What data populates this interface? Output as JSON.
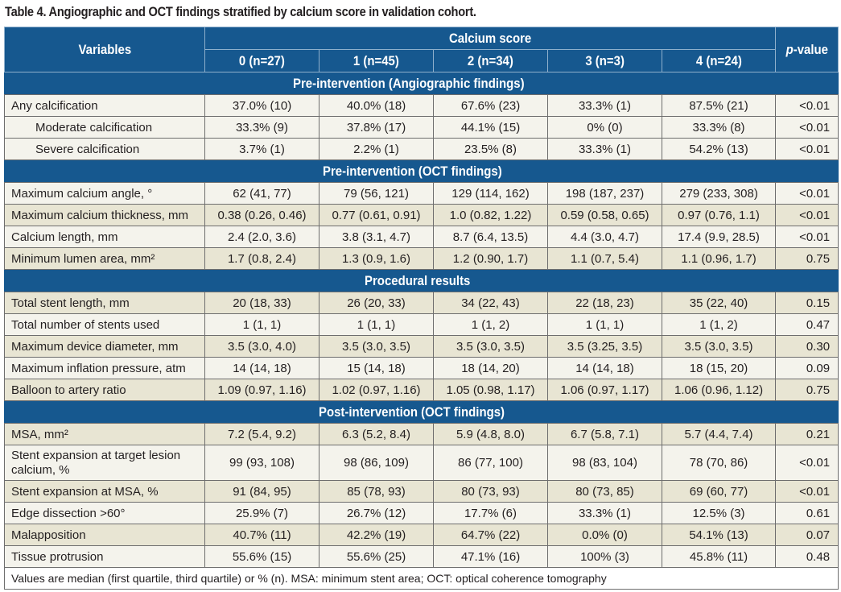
{
  "title": "Table 4. Angiographic and OCT findings stratified by calcium score in validation cohort.",
  "header": {
    "variables": "Variables",
    "group": "Calcium score",
    "pvalue_italic": "p",
    "pvalue_rest": "-value",
    "columns": [
      "0 (n=27)",
      "1 (n=45)",
      "2 (n=34)",
      "3 (n=3)",
      "4 (n=24)"
    ]
  },
  "sections": [
    {
      "title": "Pre-intervention (Angiographic findings)",
      "rows": [
        {
          "label": "Any calcification",
          "values": [
            "37.0% (10)",
            "40.0% (18)",
            "67.6% (23)",
            "33.3% (1)",
            "87.5% (21)"
          ],
          "p": "<0.01"
        },
        {
          "label": "Moderate calcification",
          "values": [
            "33.3% (9)",
            "37.8% (17)",
            "44.1% (15)",
            "0% (0)",
            "33.3% (8)"
          ],
          "p": "<0.01"
        },
        {
          "label": "Severe calcification",
          "values": [
            "3.7% (1)",
            "2.2% (1)",
            "23.5% (8)",
            "33.3% (1)",
            "54.2% (13)"
          ],
          "p": "<0.01"
        }
      ]
    },
    {
      "title": "Pre-intervention (OCT findings)",
      "rows": [
        {
          "label": "Maximum calcium angle, °",
          "values": [
            "62 (41, 77)",
            "79 (56, 121)",
            "129 (114, 162)",
            "198 (187, 237)",
            "279 (233, 308)"
          ],
          "p": "<0.01"
        },
        {
          "label": "Maximum calcium thickness, mm",
          "values": [
            "0.38 (0.26, 0.46)",
            "0.77 (0.61, 0.91)",
            "1.0 (0.82, 1.22)",
            "0.59 (0.58, 0.65)",
            "0.97 (0.76, 1.1)"
          ],
          "p": "<0.01"
        },
        {
          "label": "Calcium length, mm",
          "values": [
            "2.4 (2.0, 3.6)",
            "3.8 (3.1, 4.7)",
            "8.7 (6.4, 13.5)",
            "4.4 (3.0, 4.7)",
            "17.4 (9.9, 28.5)"
          ],
          "p": "<0.01"
        },
        {
          "label": "Minimum lumen area, mm²",
          "values": [
            "1.7 (0.8, 2.4)",
            "1.3 (0.9, 1.6)",
            "1.2 (0.90, 1.7)",
            "1.1 (0.7, 5.4)",
            "1.1 (0.96, 1.7)"
          ],
          "p": "0.75"
        }
      ]
    },
    {
      "title": "Procedural results",
      "rows": [
        {
          "label": "Total stent length, mm",
          "values": [
            "20 (18, 33)",
            "26 (20, 33)",
            "34 (22, 43)",
            "22 (18, 23)",
            "35 (22, 40)"
          ],
          "p": "0.15"
        },
        {
          "label": "Total number of stents used",
          "values": [
            "1 (1, 1)",
            "1 (1, 1)",
            "1 (1, 2)",
            "1 (1, 1)",
            "1 (1, 2)"
          ],
          "p": "0.47"
        },
        {
          "label": "Maximum device diameter, mm",
          "values": [
            "3.5 (3.0, 4.0)",
            "3.5 (3.0, 3.5)",
            "3.5 (3.0, 3.5)",
            "3.5 (3.25, 3.5)",
            "3.5 (3.0, 3.5)"
          ],
          "p": "0.30"
        },
        {
          "label": "Maximum inflation pressure, atm",
          "values": [
            "14 (14, 18)",
            "15 (14, 18)",
            "18 (14, 20)",
            "14 (14, 18)",
            "18 (15, 20)"
          ],
          "p": "0.09"
        },
        {
          "label": "Balloon to artery ratio",
          "values": [
            "1.09 (0.97, 1.16)",
            "1.02 (0.97, 1.16)",
            "1.05 (0.98, 1.17)",
            "1.06 (0.97, 1.17)",
            "1.06 (0.96, 1.12)"
          ],
          "p": "0.75"
        }
      ]
    },
    {
      "title": "Post-intervention (OCT findings)",
      "rows": [
        {
          "label": "MSA, mm²",
          "values": [
            "7.2 (5.4, 9.2)",
            "6.3 (5.2, 8.4)",
            "5.9 (4.8, 8.0)",
            "6.7 (5.8, 7.1)",
            "5.7 (4.4, 7.4)"
          ],
          "p": "0.21"
        },
        {
          "label": "Stent expansion at target lesion calcium, %",
          "values": [
            "99 (93, 108)",
            "98 (86, 109)",
            "86 (77, 100)",
            "98 (83, 104)",
            "78 (70, 86)"
          ],
          "p": "<0.01"
        },
        {
          "label": "Stent expansion at MSA, %",
          "values": [
            "91 (84, 95)",
            "85 (78, 93)",
            "80 (73, 93)",
            "80 (73, 85)",
            "69 (60, 77)"
          ],
          "p": "<0.01"
        },
        {
          "label": "Edge dissection >60°",
          "values": [
            "25.9% (7)",
            "26.7% (12)",
            "17.7% (6)",
            "33.3% (1)",
            "12.5% (3)"
          ],
          "p": "0.61"
        },
        {
          "label": "Malapposition",
          "values": [
            "40.7% (11)",
            "42.2% (19)",
            "64.7% (22)",
            "0.0% (0)",
            "54.1% (13)"
          ],
          "p": "0.07"
        },
        {
          "label": "Tissue protrusion",
          "values": [
            "55.6% (15)",
            "55.6% (25)",
            "47.1% (16)",
            "100% (3)",
            "45.8% (11)"
          ],
          "p": "0.48"
        }
      ]
    }
  ],
  "footnote": "Values are median (first quartile, third quartile) or % (n). MSA: minimum stent area; OCT: optical coherence tomography",
  "colors": {
    "header_bg": "#16588f",
    "row_light": "#f4f3ec",
    "row_beige": "#e8e5d3"
  }
}
